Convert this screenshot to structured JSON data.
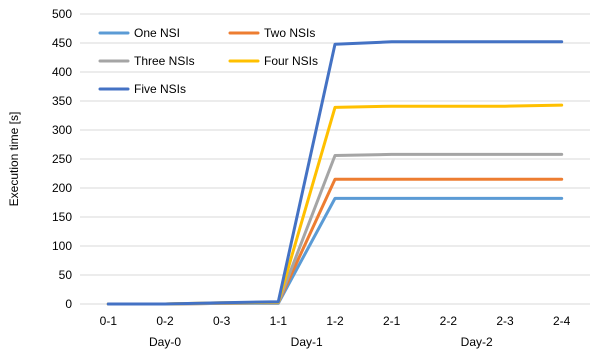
{
  "chart_data": {
    "type": "line",
    "title": "",
    "xlabel": "",
    "ylabel": "Execution time [s]",
    "ylim": [
      0,
      500
    ],
    "yticks": [
      0,
      50,
      100,
      150,
      200,
      250,
      300,
      350,
      400,
      450,
      500
    ],
    "grid": true,
    "legend_position": "top-left",
    "categories": [
      "0-1",
      "0-2",
      "0-3",
      "1-1",
      "1-2",
      "2-1",
      "2-2",
      "2-3",
      "2-4"
    ],
    "category_groups": [
      {
        "label": "Day-0",
        "categories": [
          "0-1",
          "0-2",
          "0-3"
        ]
      },
      {
        "label": "Day-1",
        "categories": [
          "1-1",
          "1-2"
        ]
      },
      {
        "label": "Day-2",
        "categories": [
          "2-1",
          "2-2",
          "2-3",
          "2-4"
        ]
      }
    ],
    "series": [
      {
        "name": "One NSI",
        "color": "#5b9bd5",
        "values": [
          0,
          0,
          1,
          1,
          182,
          182,
          182,
          182,
          182
        ]
      },
      {
        "name": "Two NSIs",
        "color": "#ed7d31",
        "values": [
          0,
          0,
          1,
          2,
          215,
          215,
          215,
          215,
          215
        ]
      },
      {
        "name": "Three NSIs",
        "color": "#a5a5a5",
        "values": [
          0,
          0,
          1,
          2,
          256,
          258,
          258,
          258,
          258
        ]
      },
      {
        "name": "Four NSIs",
        "color": "#ffc000",
        "values": [
          0,
          0,
          2,
          3,
          339,
          341,
          341,
          341,
          343
        ]
      },
      {
        "name": "Five NSIs",
        "color": "#4472c4",
        "values": [
          0,
          0,
          2,
          4,
          448,
          452,
          452,
          452,
          452
        ]
      }
    ]
  }
}
